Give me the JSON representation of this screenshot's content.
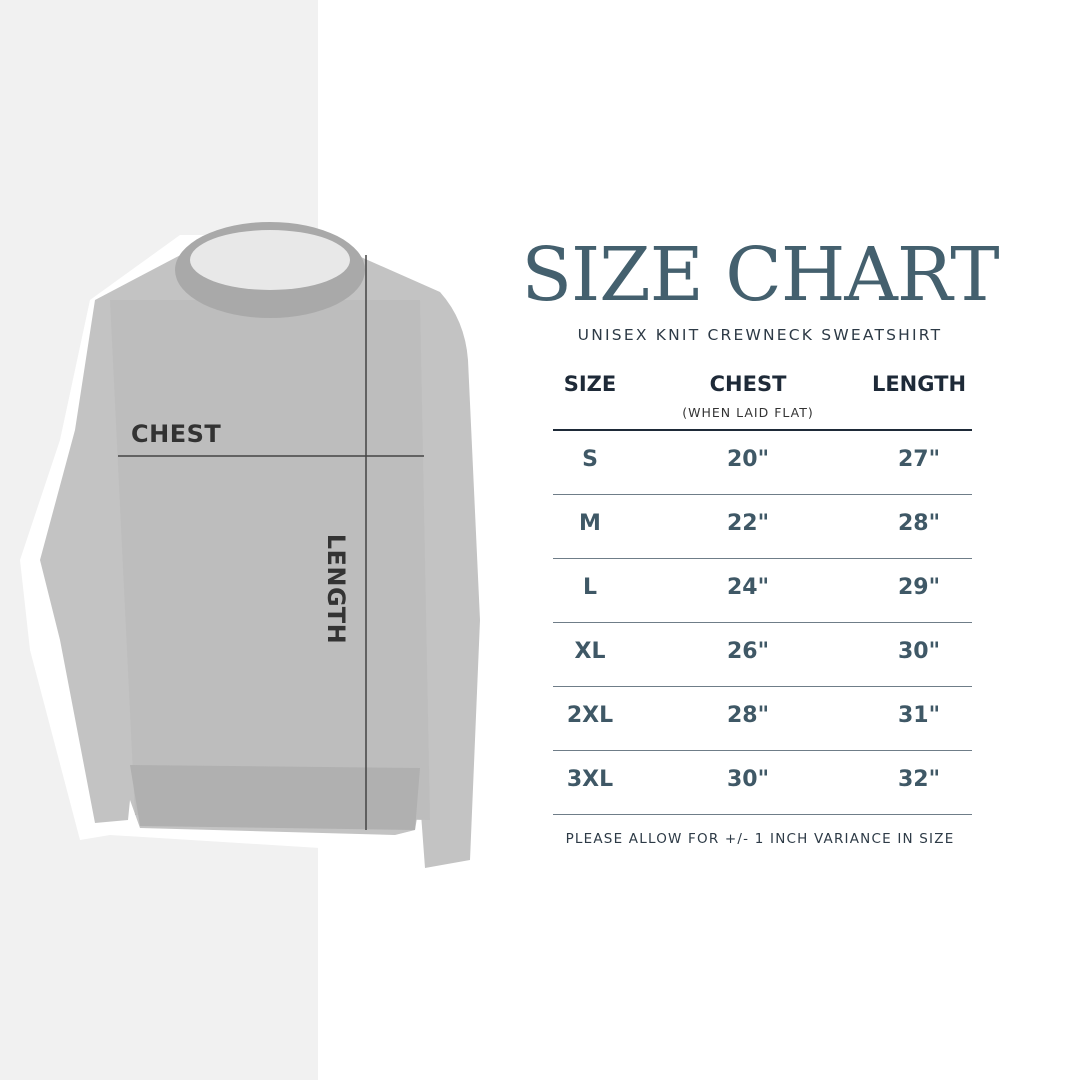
{
  "title": "SIZE CHART",
  "subtitle": "UNISEX KNIT CREWNECK SWEATSHIRT",
  "image_labels": {
    "chest": "CHEST",
    "length": "LENGTH"
  },
  "table": {
    "headers": {
      "size": "SIZE",
      "chest": "CHEST",
      "chest_note": "(WHEN LAID FLAT)",
      "length": "LENGTH"
    },
    "rows": [
      {
        "size": "S",
        "chest": "20\"",
        "length": "27\""
      },
      {
        "size": "M",
        "chest": "22\"",
        "length": "28\""
      },
      {
        "size": "L",
        "chest": "24\"",
        "length": "29\""
      },
      {
        "size": "XL",
        "chest": "26\"",
        "length": "30\""
      },
      {
        "size": "2XL",
        "chest": "28\"",
        "length": "31\""
      },
      {
        "size": "3XL",
        "chest": "30\"",
        "length": "32\""
      }
    ]
  },
  "footnote": "PLEASE ALLOW FOR +/- 1 INCH VARIANCE IN SIZE",
  "colors": {
    "title": "#44606e",
    "header": "#1e2a38",
    "values": "#3f5866",
    "left_panel": "#f1f1f1"
  }
}
